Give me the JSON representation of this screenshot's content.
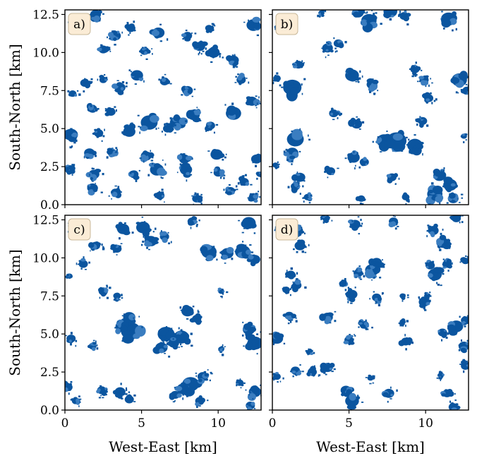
{
  "chart_data": {
    "type": "heatmap",
    "xlabel": "West-East [km]",
    "ylabel": "South-North [km]",
    "xlim": [
      0,
      12.8
    ],
    "ylim": [
      0,
      12.8
    ],
    "xticks": [
      "0",
      "5",
      "10"
    ],
    "yticks": [
      "0.0",
      "2.5",
      "5.0",
      "7.5",
      "10.0",
      "12.5"
    ],
    "cloud_color": "#0b559f",
    "cloud_color_light": "#3a7dc0",
    "label_box_color": "#fbecd6",
    "panels": [
      {
        "label": "a)",
        "clouds": [
          [
            2.0,
            12.5,
            0.35
          ],
          [
            3.3,
            11.1,
            0.35
          ],
          [
            4.3,
            11.6,
            0.3
          ],
          [
            6.1,
            11.3,
            0.4
          ],
          [
            8.0,
            11.1,
            0.3
          ],
          [
            9.4,
            11.6,
            0.25
          ],
          [
            12.3,
            11.8,
            0.45
          ],
          [
            2.5,
            10.2,
            0.3
          ],
          [
            5.2,
            10.1,
            0.3
          ],
          [
            8.8,
            10.4,
            0.35
          ],
          [
            9.7,
            10.0,
            0.4
          ],
          [
            11.0,
            9.5,
            0.35
          ],
          [
            1.3,
            8.0,
            0.3
          ],
          [
            2.5,
            8.2,
            0.25
          ],
          [
            3.6,
            7.7,
            0.35
          ],
          [
            4.7,
            8.5,
            0.4
          ],
          [
            6.5,
            8.1,
            0.3
          ],
          [
            8.0,
            7.5,
            0.35
          ],
          [
            11.5,
            8.2,
            0.3
          ],
          [
            0.5,
            7.3,
            0.25
          ],
          [
            1.8,
            6.3,
            0.3
          ],
          [
            3.0,
            6.1,
            0.3
          ],
          [
            5.5,
            5.4,
            0.55
          ],
          [
            7.3,
            5.4,
            0.45
          ],
          [
            8.4,
            5.9,
            0.4
          ],
          [
            11.0,
            6.0,
            0.5
          ],
          [
            12.2,
            6.8,
            0.35
          ],
          [
            0.4,
            4.6,
            0.45
          ],
          [
            2.2,
            4.7,
            0.3
          ],
          [
            4.2,
            4.8,
            0.4
          ],
          [
            6.7,
            5.0,
            0.3
          ],
          [
            9.5,
            5.2,
            0.3
          ],
          [
            1.6,
            3.4,
            0.35
          ],
          [
            3.1,
            3.4,
            0.3
          ],
          [
            5.3,
            3.2,
            0.35
          ],
          [
            7.8,
            3.0,
            0.35
          ],
          [
            9.9,
            3.3,
            0.4
          ],
          [
            12.5,
            3.0,
            0.35
          ],
          [
            0.3,
            2.3,
            0.3
          ],
          [
            1.9,
            2.0,
            0.35
          ],
          [
            4.5,
            2.0,
            0.3
          ],
          [
            6.0,
            2.3,
            0.45
          ],
          [
            7.9,
            2.3,
            0.4
          ],
          [
            10.0,
            2.1,
            0.3
          ],
          [
            11.7,
            1.5,
            0.3
          ],
          [
            1.8,
            1.1,
            0.35
          ],
          [
            3.3,
            0.8,
            0.3
          ],
          [
            6.2,
            0.6,
            0.3
          ],
          [
            8.6,
            0.4,
            0.3
          ],
          [
            10.8,
            0.9,
            0.3
          ],
          [
            12.3,
            0.5,
            0.3
          ],
          [
            0.6,
            12.0,
            0.25
          ],
          [
            12.7,
            2.0,
            0.2
          ]
        ]
      },
      {
        "label": "b)",
        "clouds": [
          [
            5.6,
            12.6,
            0.35
          ],
          [
            6.3,
            12.1,
            0.5
          ],
          [
            7.7,
            12.7,
            0.45
          ],
          [
            8.6,
            12.4,
            0.3
          ],
          [
            11.5,
            12.2,
            0.5
          ],
          [
            3.6,
            10.3,
            0.35
          ],
          [
            4.3,
            10.6,
            0.3
          ],
          [
            1.7,
            9.2,
            0.3
          ],
          [
            9.3,
            8.9,
            0.3
          ],
          [
            5.2,
            8.5,
            0.45
          ],
          [
            6.5,
            7.9,
            0.35
          ],
          [
            9.9,
            8.2,
            0.3
          ],
          [
            0.3,
            8.3,
            0.25
          ],
          [
            1.3,
            7.7,
            0.6
          ],
          [
            10.2,
            7.0,
            0.3
          ],
          [
            12.2,
            8.2,
            0.5
          ],
          [
            12.7,
            7.5,
            0.3
          ],
          [
            4.0,
            6.0,
            0.3
          ],
          [
            5.5,
            5.3,
            0.35
          ],
          [
            9.8,
            5.5,
            0.3
          ],
          [
            1.5,
            4.3,
            0.55
          ],
          [
            1.3,
            3.4,
            0.4
          ],
          [
            7.3,
            4.2,
            0.5
          ],
          [
            8.1,
            4.2,
            0.65
          ],
          [
            9.3,
            3.9,
            0.5
          ],
          [
            5.3,
            3.1,
            0.4
          ],
          [
            6.0,
            2.8,
            0.3
          ],
          [
            1.8,
            1.8,
            0.35
          ],
          [
            1.5,
            1.2,
            0.3
          ],
          [
            3.8,
            2.2,
            0.3
          ],
          [
            7.8,
            1.8,
            0.3
          ],
          [
            10.9,
            1.9,
            0.4
          ],
          [
            11.6,
            1.3,
            0.45
          ],
          [
            10.6,
            0.7,
            0.5
          ],
          [
            11.8,
            0.4,
            0.35
          ],
          [
            2.3,
            0.5,
            0.25
          ],
          [
            5.8,
            0.4,
            0.25
          ],
          [
            8.7,
            0.5,
            0.25
          ],
          [
            0.2,
            2.6,
            0.2
          ],
          [
            12.5,
            4.5,
            0.2
          ],
          [
            3.2,
            12.6,
            0.2
          ],
          [
            0.4,
            11.6,
            0.2
          ]
        ]
      },
      {
        "label": "c)",
        "clouds": [
          [
            0.5,
            12.1,
            0.3
          ],
          [
            3.8,
            11.9,
            0.4
          ],
          [
            5.1,
            12.0,
            0.45
          ],
          [
            5.6,
            11.1,
            0.4
          ],
          [
            6.5,
            11.4,
            0.3
          ],
          [
            8.3,
            12.4,
            0.3
          ],
          [
            12.0,
            12.3,
            0.45
          ],
          [
            2.0,
            10.8,
            0.3
          ],
          [
            3.4,
            10.6,
            0.3
          ],
          [
            9.4,
            10.4,
            0.5
          ],
          [
            10.6,
            10.3,
            0.4
          ],
          [
            11.6,
            10.4,
            0.5
          ],
          [
            12.4,
            9.9,
            0.35
          ],
          [
            1.2,
            9.6,
            0.3
          ],
          [
            0.3,
            8.8,
            0.2
          ],
          [
            2.5,
            7.8,
            0.3
          ],
          [
            3.4,
            7.5,
            0.25
          ],
          [
            10.2,
            7.8,
            0.2
          ],
          [
            4.2,
            6.1,
            0.4
          ],
          [
            4.3,
            5.2,
            0.65
          ],
          [
            3.7,
            5.5,
            0.4
          ],
          [
            6.6,
            5.0,
            0.55
          ],
          [
            6.3,
            4.1,
            0.4
          ],
          [
            7.6,
            4.8,
            0.5
          ],
          [
            7.1,
            4.4,
            0.35
          ],
          [
            8.0,
            6.5,
            0.4
          ],
          [
            8.6,
            6.0,
            0.3
          ],
          [
            12.0,
            5.3,
            0.4
          ],
          [
            12.4,
            4.4,
            0.5
          ],
          [
            0.4,
            4.7,
            0.3
          ],
          [
            1.8,
            4.2,
            0.25
          ],
          [
            10.2,
            4.0,
            0.2
          ],
          [
            8.2,
            1.7,
            0.55
          ],
          [
            7.7,
            1.4,
            0.4
          ],
          [
            9.0,
            2.2,
            0.35
          ],
          [
            7.2,
            1.0,
            0.3
          ],
          [
            8.8,
            0.6,
            0.3
          ],
          [
            2.4,
            1.3,
            0.3
          ],
          [
            3.6,
            1.2,
            0.35
          ],
          [
            4.2,
            0.7,
            0.3
          ],
          [
            0.2,
            1.5,
            0.3
          ],
          [
            0.7,
            0.6,
            0.25
          ],
          [
            12.4,
            1.2,
            0.4
          ],
          [
            12.1,
            0.3,
            0.3
          ],
          [
            11.4,
            1.8,
            0.25
          ]
        ]
      },
      {
        "label": "d)",
        "clouds": [
          [
            0.5,
            11.7,
            0.3
          ],
          [
            1.8,
            10.8,
            0.35
          ],
          [
            1.7,
            11.8,
            0.3
          ],
          [
            3.5,
            12.6,
            0.25
          ],
          [
            5.4,
            12.2,
            0.35
          ],
          [
            7.9,
            12.4,
            0.3
          ],
          [
            10.5,
            11.8,
            0.35
          ],
          [
            11.1,
            11.0,
            0.4
          ],
          [
            12.0,
            12.6,
            0.3
          ],
          [
            6.5,
            9.2,
            0.45
          ],
          [
            6.8,
            9.7,
            0.35
          ],
          [
            5.6,
            9.0,
            0.3
          ],
          [
            10.3,
            9.5,
            0.3
          ],
          [
            10.6,
            8.9,
            0.45
          ],
          [
            11.4,
            9.6,
            0.3
          ],
          [
            12.6,
            9.8,
            0.25
          ],
          [
            1.2,
            8.9,
            0.3
          ],
          [
            1.6,
            8.2,
            0.3
          ],
          [
            0.9,
            7.9,
            0.25
          ],
          [
            4.6,
            8.3,
            0.25
          ],
          [
            5.2,
            7.6,
            0.35
          ],
          [
            6.8,
            7.4,
            0.3
          ],
          [
            9.9,
            7.1,
            0.35
          ],
          [
            10.1,
            7.5,
            0.2
          ],
          [
            8.5,
            7.5,
            0.2
          ],
          [
            1.1,
            6.2,
            0.3
          ],
          [
            3.6,
            6.1,
            0.35
          ],
          [
            6.0,
            5.6,
            0.3
          ],
          [
            8.5,
            5.8,
            0.2
          ],
          [
            12.0,
            5.5,
            0.45
          ],
          [
            12.6,
            5.9,
            0.3
          ],
          [
            0.3,
            4.7,
            0.4
          ],
          [
            5.0,
            4.6,
            0.3
          ],
          [
            8.7,
            4.5,
            0.3
          ],
          [
            11.1,
            5.1,
            0.3
          ],
          [
            1.5,
            2.6,
            0.3
          ],
          [
            3.6,
            2.8,
            0.35
          ],
          [
            2.6,
            2.5,
            0.3
          ],
          [
            12.5,
            4.2,
            0.35
          ],
          [
            0.3,
            2.2,
            0.25
          ],
          [
            12.6,
            2.9,
            0.3
          ],
          [
            4.8,
            1.3,
            0.35
          ],
          [
            5.2,
            0.6,
            0.45
          ],
          [
            7.6,
            1.1,
            0.35
          ],
          [
            11.4,
            1.1,
            0.3
          ],
          [
            11.0,
            2.3,
            0.2
          ],
          [
            11.8,
            0.2,
            0.3
          ],
          [
            2.4,
            3.8,
            0.2
          ],
          [
            6.4,
            2.1,
            0.2
          ]
        ]
      }
    ]
  }
}
